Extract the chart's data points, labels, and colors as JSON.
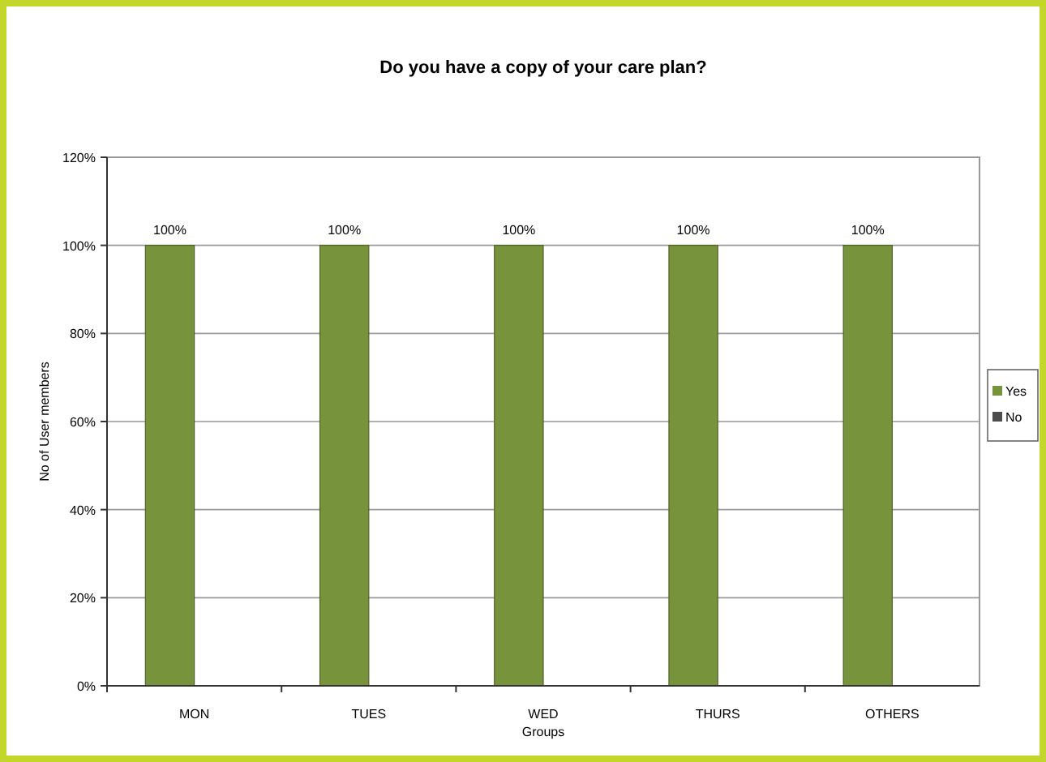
{
  "chart_data": {
    "type": "bar",
    "title": "Do you have a copy of your care plan?",
    "xlabel": "Groups",
    "ylabel": "No of User members",
    "categories": [
      "MON",
      "TUES",
      "WED",
      "THURS",
      "OTHERS"
    ],
    "series": [
      {
        "name": "Yes",
        "color": "#77933c",
        "values": [
          100,
          100,
          100,
          100,
          100
        ],
        "value_labels": [
          "100%",
          "100%",
          "100%",
          "100%",
          "100%"
        ]
      },
      {
        "name": "No",
        "color": "#4d4d4d",
        "values": [
          0,
          0,
          0,
          0,
          0
        ]
      }
    ],
    "ylim": [
      0,
      120
    ],
    "yticks": [
      {
        "value": 0,
        "label": "0%"
      },
      {
        "value": 20,
        "label": "20%"
      },
      {
        "value": 40,
        "label": "40%"
      },
      {
        "value": 60,
        "label": "60%"
      },
      {
        "value": 80,
        "label": "80%"
      },
      {
        "value": 100,
        "label": "100%"
      },
      {
        "value": 120,
        "label": "120%"
      }
    ],
    "grid": "y",
    "legend": "right"
  }
}
